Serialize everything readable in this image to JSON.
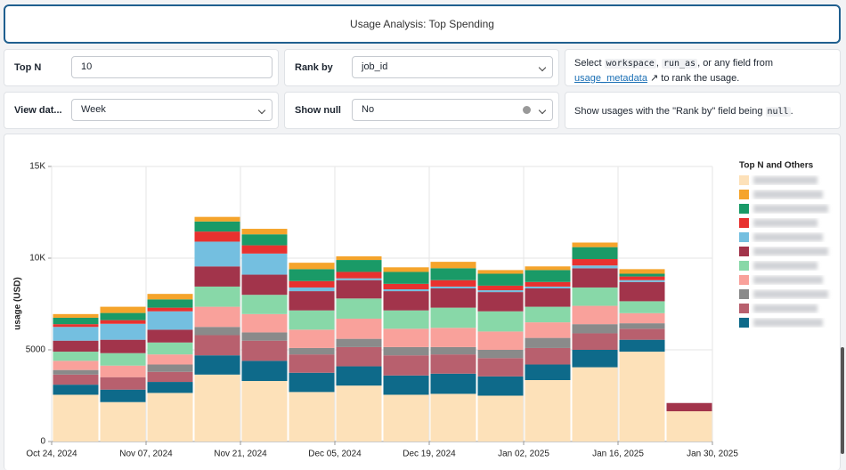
{
  "header": {
    "title": "Usage Analysis: Top Spending"
  },
  "filters": {
    "top_n": {
      "label": "Top N",
      "value": "10"
    },
    "rank_by": {
      "label": "Rank by",
      "value": "job_id",
      "help": {
        "prefix": "Select ",
        "code1": "workspace",
        "sep": ", ",
        "code2": "run_as",
        "middle": ", or any field from ",
        "link": "usage_metadata",
        "suffix": " to rank the usage."
      }
    },
    "view_date": {
      "label": "View dat...",
      "value": "Week"
    },
    "show_null": {
      "label": "Show null",
      "value": "No",
      "help": {
        "prefix": "Show usages with the \"Rank by\" field being ",
        "code": "null",
        "suffix": "."
      }
    }
  },
  "chart_data": {
    "type": "bar",
    "stacked": true,
    "y_label": "usage (USD)",
    "legend_title": "Top N and Others",
    "legend": "right",
    "grid": true,
    "x": [
      "2024-10-24",
      "2024-10-31",
      "2024-11-07",
      "2024-11-14",
      "2024-11-21",
      "2024-11-28",
      "2024-12-05",
      "2024-12-12",
      "2024-12-19",
      "2024-12-26",
      "2025-01-02",
      "2025-01-09",
      "2025-01-16",
      "2025-01-23"
    ],
    "xlim": [
      "2024-10-24",
      "2025-01-30"
    ],
    "xticks": [
      {
        "value": "2024-10-24",
        "label": "Oct 24, 2024"
      },
      {
        "value": "2024-11-07",
        "label": "Nov 07, 2024"
      },
      {
        "value": "2024-11-21",
        "label": "Nov 21, 2024"
      },
      {
        "value": "2024-12-05",
        "label": "Dec 05, 2024"
      },
      {
        "value": "2024-12-19",
        "label": "Dec 19, 2024"
      },
      {
        "value": "2025-01-02",
        "label": "Jan 02, 2025"
      },
      {
        "value": "2025-01-16",
        "label": "Jan 16, 2025"
      },
      {
        "value": "2025-01-30",
        "label": "Jan 30, 2025"
      }
    ],
    "ylim": [
      0,
      15000
    ],
    "yticks": [
      0,
      5000,
      {
        "value": 10000,
        "label": "10K"
      },
      {
        "value": 15000,
        "label": "15K"
      }
    ],
    "series": [
      {
        "color": "#fde1b9",
        "values": [
          2550,
          2150,
          2650,
          3650,
          3300,
          2700,
          3050,
          2550,
          2600,
          2500,
          3350,
          4050,
          4900,
          1650
        ]
      },
      {
        "color": "#0e6a8a",
        "values": [
          550,
          680,
          600,
          1050,
          1100,
          1050,
          1050,
          1050,
          1100,
          1050,
          850,
          950,
          650,
          0
        ]
      },
      {
        "color": "#b8606e",
        "values": [
          550,
          680,
          550,
          1100,
          1100,
          1000,
          1050,
          1100,
          1050,
          1000,
          900,
          900,
          600,
          0
        ]
      },
      {
        "color": "#8a8a8a",
        "values": [
          250,
          0,
          400,
          450,
          450,
          350,
          450,
          450,
          400,
          450,
          550,
          500,
          300,
          0
        ]
      },
      {
        "color": "#f9a19b",
        "values": [
          500,
          630,
          550,
          1100,
          1000,
          1000,
          1100,
          1000,
          1050,
          1000,
          850,
          1000,
          550,
          0
        ]
      },
      {
        "color": "#88d8a8",
        "values": [
          500,
          680,
          650,
          1100,
          1050,
          1050,
          1100,
          1000,
          1100,
          1100,
          850,
          1000,
          650,
          0
        ]
      },
      {
        "color": "#a2344b",
        "values": [
          600,
          730,
          700,
          1100,
          1100,
          1050,
          1000,
          1050,
          1050,
          1050,
          1000,
          1050,
          1050,
          450
        ]
      },
      {
        "color": "#74bfe0",
        "values": [
          750,
          870,
          1000,
          1350,
          1150,
          200,
          100,
          100,
          100,
          100,
          100,
          150,
          100,
          0
        ]
      },
      {
        "color": "#e8312f",
        "values": [
          150,
          200,
          200,
          550,
          450,
          350,
          350,
          300,
          350,
          250,
          250,
          350,
          200,
          0
        ]
      },
      {
        "color": "#1a9a67",
        "values": [
          350,
          390,
          450,
          550,
          600,
          650,
          650,
          650,
          650,
          650,
          650,
          650,
          150,
          0
        ]
      },
      {
        "color": "#f5a42b",
        "values": [
          200,
          340,
          300,
          250,
          300,
          350,
          200,
          250,
          350,
          200,
          200,
          250,
          250,
          0
        ]
      }
    ]
  }
}
